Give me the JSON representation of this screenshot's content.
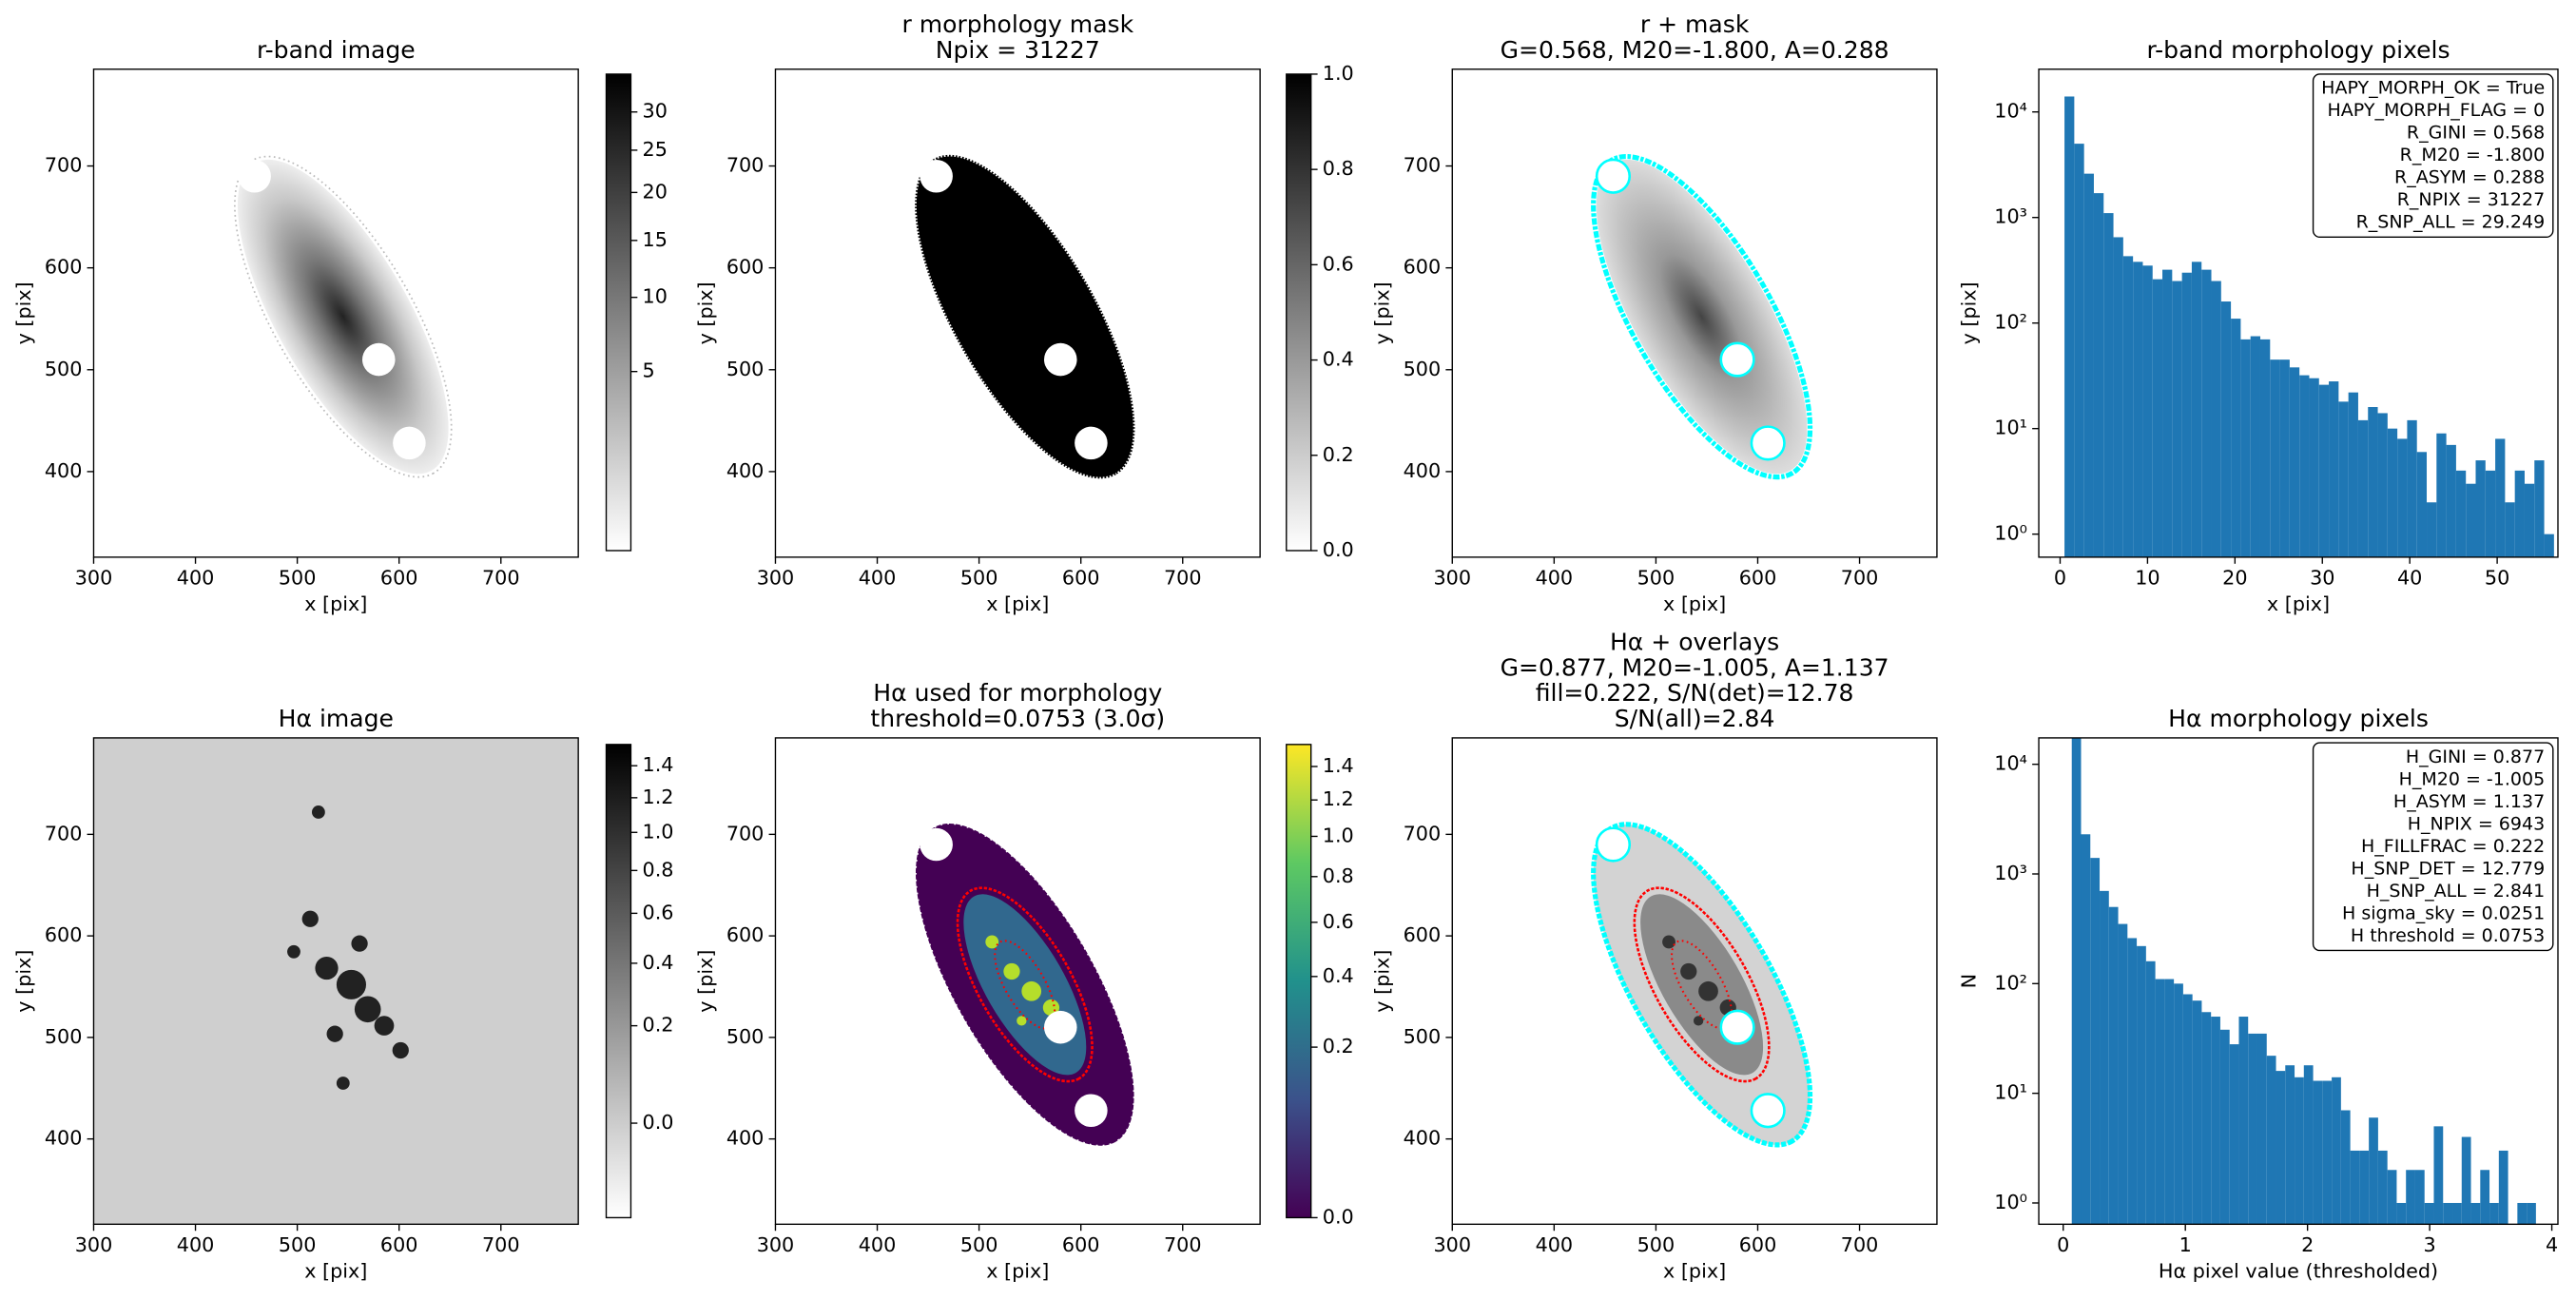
{
  "chart_data": [
    {
      "type": "image",
      "title": [
        "r-band image"
      ],
      "xlabel": "x [pix]",
      "ylabel": "y [pix]",
      "xlim": [
        300,
        776
      ],
      "ylim": [
        316,
        795
      ],
      "xticks": [
        300,
        400,
        500,
        600,
        700
      ],
      "yticks": [
        400,
        500,
        600,
        700
      ],
      "colorbar": {
        "cmap": "gray_r",
        "scale": "sqrt",
        "lim": [
          0,
          35.4
        ],
        "ticks": [
          5,
          10,
          15,
          20,
          25,
          30
        ]
      }
    },
    {
      "type": "image",
      "title": [
        "r morphology mask",
        "Npix = 31227"
      ],
      "xlabel": "x [pix]",
      "ylabel": "y [pix]",
      "xlim": [
        300,
        776
      ],
      "ylim": [
        316,
        795
      ],
      "xticks": [
        300,
        400,
        500,
        600,
        700
      ],
      "yticks": [
        400,
        500,
        600,
        700
      ],
      "colorbar": {
        "cmap": "gray_r",
        "scale": "linear",
        "lim": [
          0,
          1
        ],
        "ticks": [
          {
            "value": 0,
            "label": "0.0"
          },
          0.2,
          0.4,
          0.6,
          0.8,
          {
            "value": 1,
            "label": "1.0"
          }
        ]
      }
    },
    {
      "type": "image",
      "title": [
        "r + mask",
        "G=0.568, M20=-1.800, A=0.288"
      ],
      "xlabel": "x [pix]",
      "ylabel": "y [pix]",
      "xlim": [
        300,
        776
      ],
      "ylim": [
        316,
        795
      ],
      "xticks": [
        300,
        400,
        500,
        600,
        700
      ],
      "yticks": [
        400,
        500,
        600,
        700
      ]
    },
    {
      "type": "histogram",
      "title": [
        "r-band morphology pixels"
      ],
      "xlabel": "x [pix]",
      "ylabel": "y [pix]",
      "color": "#1f77b4",
      "log_y": true,
      "xlim": [
        -2.44,
        56.95
      ],
      "ylim": [
        0.605,
        25400
      ],
      "xticks": [
        0,
        10,
        20,
        30,
        40,
        50
      ],
      "yticks": [
        {
          "value": 1,
          "label": "10⁰"
        },
        {
          "value": 10,
          "label": "10¹"
        },
        {
          "value": 100,
          "label": "10²"
        },
        {
          "value": 1000,
          "label": "10³"
        },
        {
          "value": 10000,
          "label": "10⁴"
        }
      ],
      "bins": [
        0.5,
        1.62,
        2.74,
        3.86,
        4.98,
        6.1,
        7.22,
        8.34,
        9.46,
        10.58,
        11.7,
        12.82,
        13.94,
        15.06,
        16.18,
        17.3,
        18.42,
        19.54,
        20.66,
        21.78,
        22.9,
        24.02,
        25.14,
        26.26,
        27.38,
        28.5,
        29.62,
        30.74,
        31.86,
        32.98,
        34.1,
        35.22,
        36.34,
        37.46,
        38.58,
        39.7,
        40.82,
        41.94,
        43.06,
        44.18,
        45.3,
        46.42,
        47.54,
        48.66,
        49.78,
        50.9,
        52.02,
        53.14,
        54.26,
        55.38,
        56.5
      ],
      "values": [
        14000,
        5000,
        2600,
        1700,
        1100,
        650,
        430,
        380,
        350,
        260,
        320,
        250,
        300,
        380,
        320,
        250,
        160,
        110,
        70,
        75,
        70,
        45,
        45,
        38,
        32,
        30,
        26,
        28,
        18,
        22,
        12,
        16,
        14,
        10,
        8,
        12,
        6,
        2,
        9,
        7,
        4,
        3,
        5,
        4,
        8,
        2,
        4,
        3,
        5,
        1
      ],
      "annotations": [
        "HAPY_MORPH_OK = True",
        "HAPY_MORPH_FLAG = 0",
        "R_GINI = 0.568",
        "R_M20 = -1.800",
        "R_ASYM = 0.288",
        "R_NPIX = 31227",
        "R_SNP_ALL = 29.249"
      ]
    },
    {
      "type": "image",
      "title": [
        "Hα image"
      ],
      "xlabel": "x [pix]",
      "ylabel": "y [pix]",
      "xlim": [
        300,
        776
      ],
      "ylim": [
        316,
        795
      ],
      "xticks": [
        300,
        400,
        500,
        600,
        700
      ],
      "yticks": [
        400,
        500,
        600,
        700
      ],
      "colorbar": {
        "cmap": "gray_r",
        "scale": "sqrt",
        "lim": [
          -0.064,
          1.541
        ],
        "ticks": [
          {
            "value": 0,
            "label": "0.0"
          },
          0.2,
          0.4,
          0.6,
          0.8,
          {
            "value": 1,
            "label": "1.0"
          },
          1.2,
          1.4
        ]
      }
    },
    {
      "type": "image",
      "title": [
        "Hα used for morphology",
        "threshold=0.0753 (3.0σ)"
      ],
      "xlabel": "x [pix]",
      "ylabel": "y [pix]",
      "xlim": [
        300,
        776
      ],
      "ylim": [
        316,
        795
      ],
      "xticks": [
        300,
        400,
        500,
        600,
        700
      ],
      "yticks": [
        400,
        500,
        600,
        700
      ],
      "colorbar": {
        "cmap": "viridis",
        "scale": "sqrt",
        "lim": [
          0,
          1.54
        ],
        "ticks": [
          {
            "value": 0,
            "label": "0.0"
          },
          0.2,
          0.4,
          0.6,
          0.8,
          {
            "value": 1,
            "label": "1.0"
          },
          1.2,
          1.4
        ]
      }
    },
    {
      "type": "image",
      "title": [
        "Hα + overlays",
        "G=0.877, M20=-1.005, A=1.137",
        "fill=0.222, S/N(det)=12.78",
        "S/N(all)=2.84"
      ],
      "xlabel": "x [pix]",
      "ylabel": "y [pix]",
      "xlim": [
        300,
        776
      ],
      "ylim": [
        316,
        795
      ],
      "xticks": [
        300,
        400,
        500,
        600,
        700
      ],
      "yticks": [
        400,
        500,
        600,
        700
      ]
    },
    {
      "type": "histogram",
      "title": [
        "Hα morphology pixels"
      ],
      "xlabel": "Hα pixel value (thresholded)",
      "ylabel": "N",
      "color": "#1f77b4",
      "log_y": true,
      "xlim": [
        -0.2,
        4.05
      ],
      "ylim": [
        0.64,
        17400
      ],
      "xticks": [
        0,
        1,
        2,
        3,
        4
      ],
      "yticks": [
        {
          "value": 1,
          "label": "10⁰"
        },
        {
          "value": 10,
          "label": "10¹"
        },
        {
          "value": 100,
          "label": "10²"
        },
        {
          "value": 1000,
          "label": "10³"
        },
        {
          "value": 10000,
          "label": "10⁴"
        }
      ],
      "bins": [
        0.07,
        0.146,
        0.222,
        0.298,
        0.374,
        0.45,
        0.526,
        0.602,
        0.678,
        0.754,
        0.83,
        0.906,
        0.982,
        1.058,
        1.134,
        1.21,
        1.286,
        1.362,
        1.438,
        1.514,
        1.59,
        1.666,
        1.742,
        1.818,
        1.894,
        1.97,
        2.046,
        2.122,
        2.198,
        2.274,
        2.35,
        2.426,
        2.502,
        2.578,
        2.654,
        2.73,
        2.806,
        2.882,
        2.958,
        3.034,
        3.11,
        3.186,
        3.262,
        3.338,
        3.414,
        3.49,
        3.566,
        3.642,
        3.718,
        3.794,
        3.87
      ],
      "values": [
        24000,
        2300,
        1400,
        700,
        500,
        350,
        260,
        220,
        160,
        110,
        110,
        100,
        80,
        70,
        55,
        50,
        38,
        28,
        50,
        35,
        35,
        22,
        16,
        18,
        14,
        18,
        13,
        13,
        14,
        7,
        3,
        3,
        6,
        3,
        2,
        1,
        2,
        2,
        1,
        5,
        1,
        1,
        4,
        1,
        2,
        1,
        3,
        0,
        1,
        1
      ],
      "annotations": [
        "H_GINI = 0.877",
        "H_M20 = -1.005",
        "H_ASYM = 1.137",
        "H_NPIX = 6943",
        "H_FILLFRAC = 0.222",
        "H_SNP_DET = 12.779",
        "H_SNP_ALL = 2.841",
        "H sigma_sky = 0.0251",
        "H threshold = 0.0753"
      ]
    }
  ]
}
